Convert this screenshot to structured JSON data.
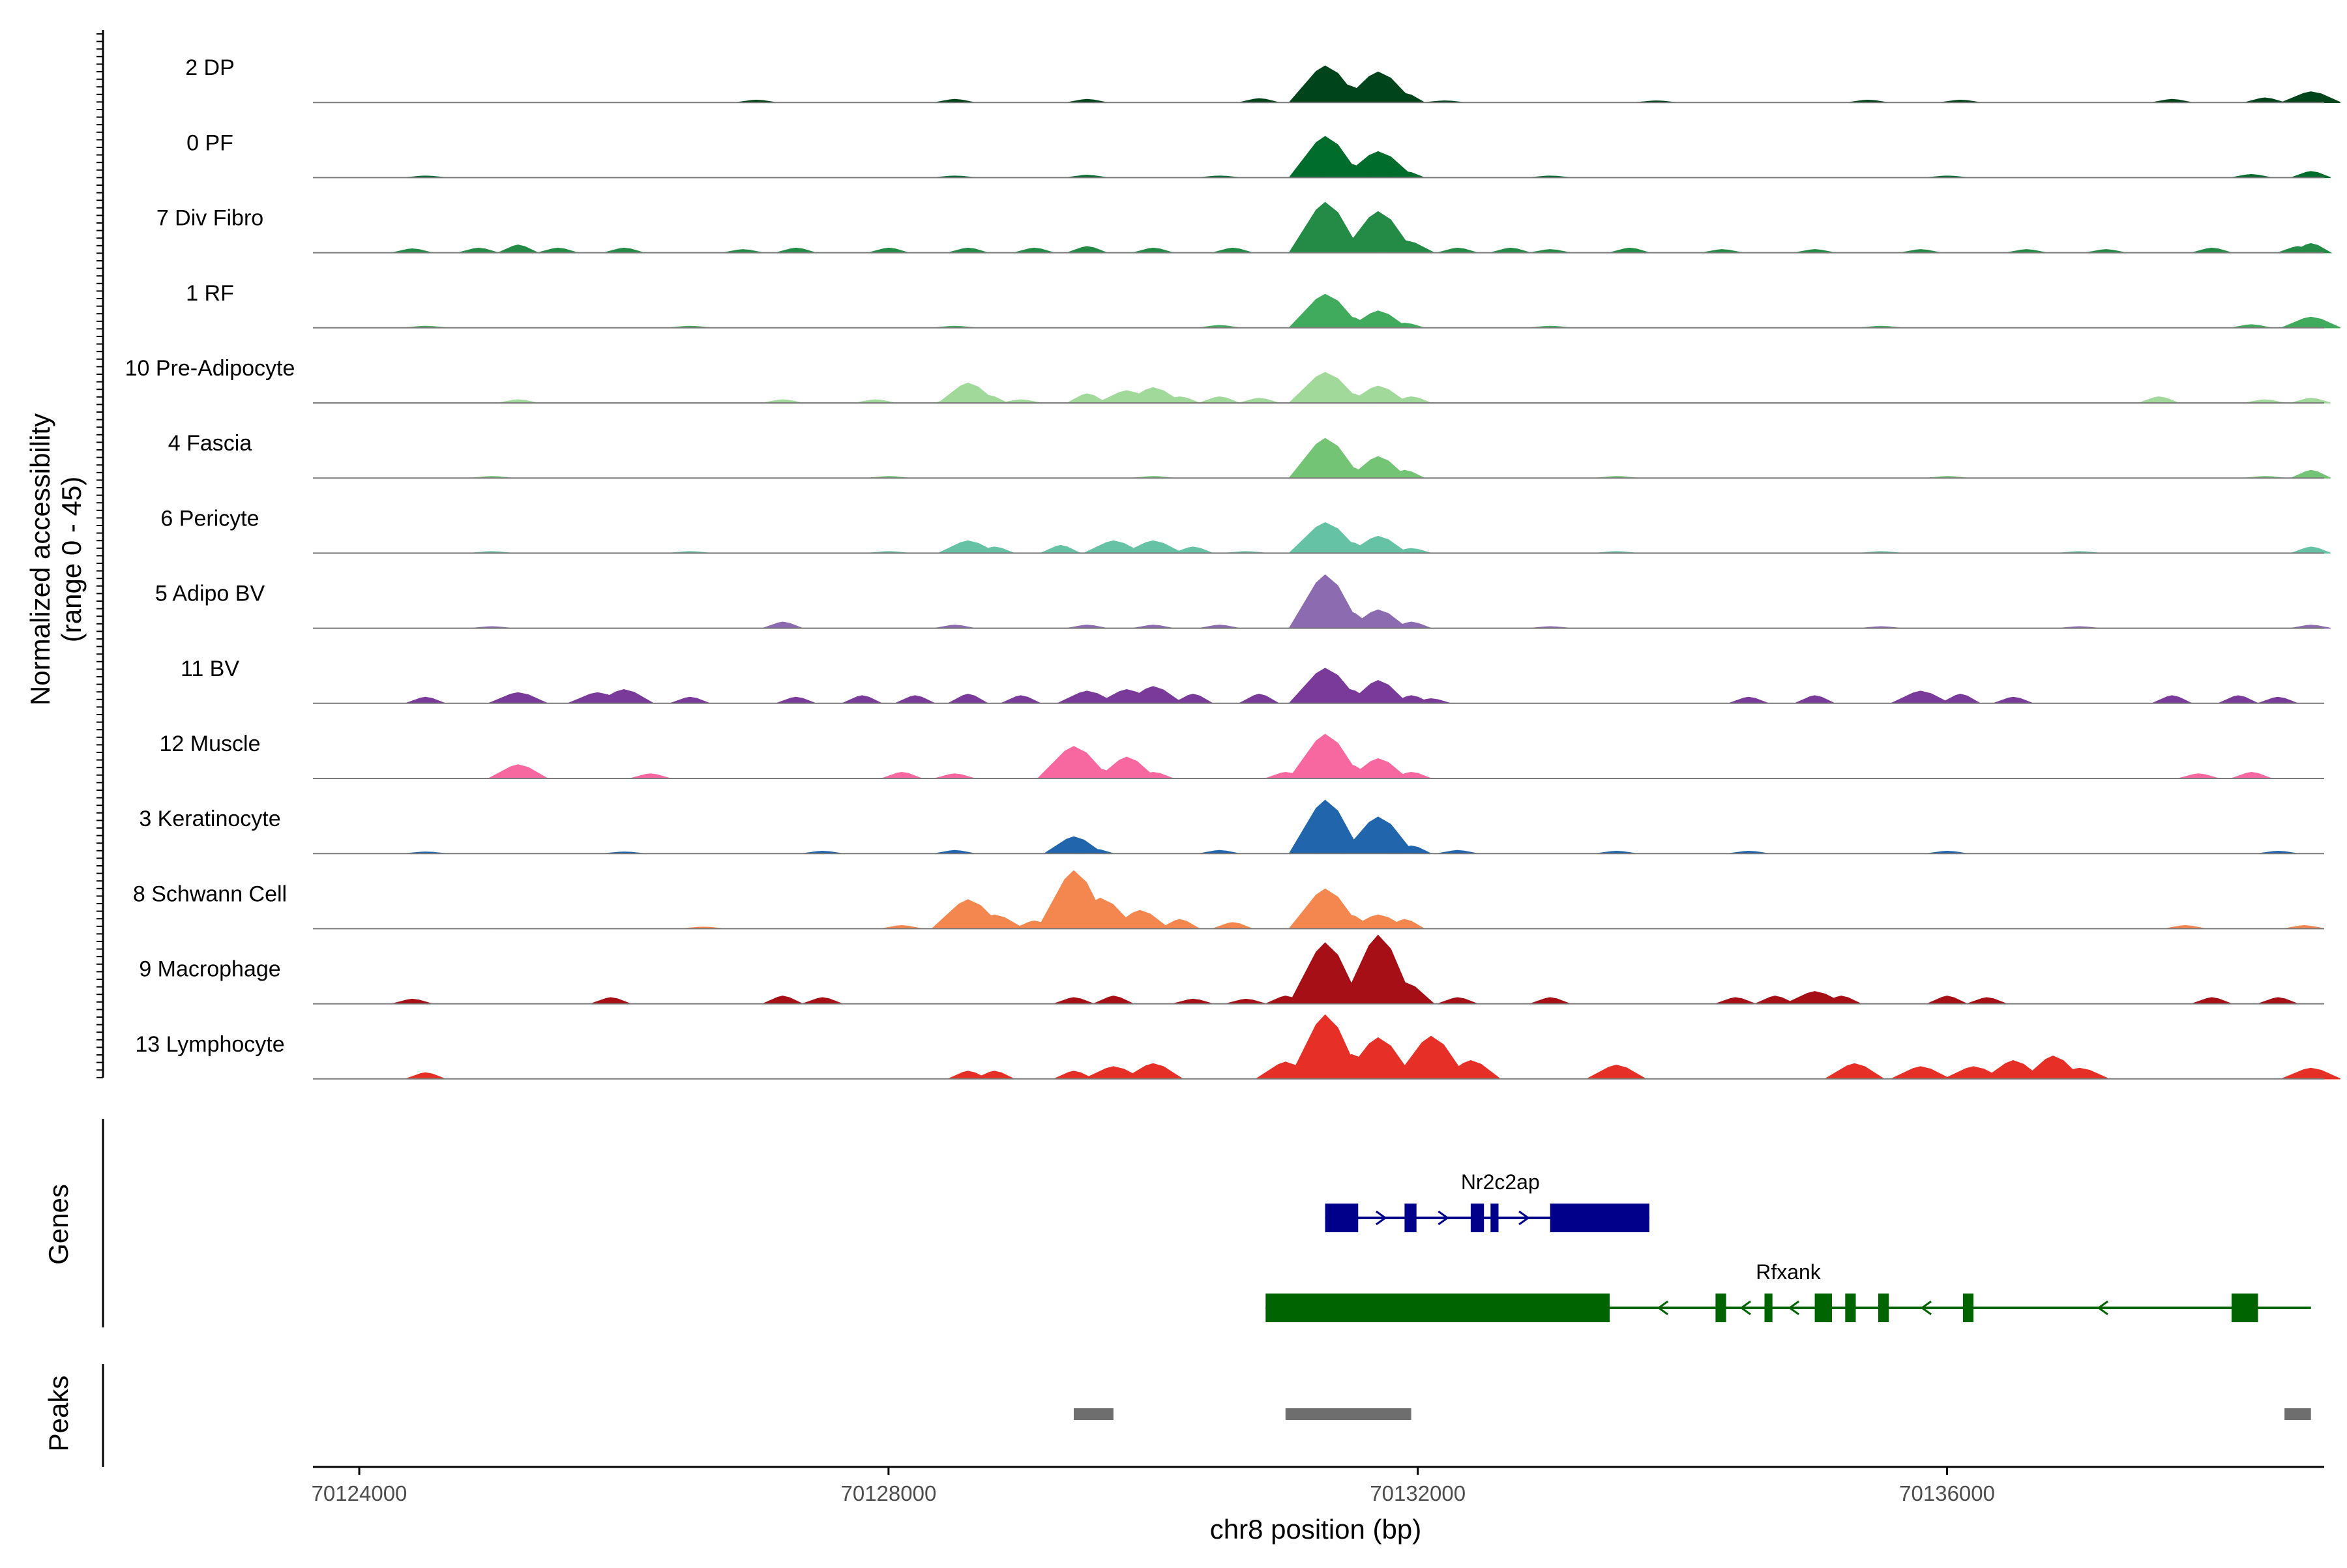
{
  "chart_data": {
    "type": "area",
    "xlabel": "chr8 position (bp)",
    "ylabel": "Normalized accessibility",
    "ylabel_range": "(range 0 - 45)",
    "ylim": [
      0,
      45
    ],
    "xlim": [
      70123650,
      70138850
    ],
    "x_ticks": [
      70124000,
      70128000,
      70132000,
      70136000
    ],
    "x_tick_labels": [
      "70124000",
      "70128000",
      "70132000",
      "70136000"
    ],
    "track_labels": {
      "genes": "Genes",
      "peaks": "Peaks"
    },
    "series": [
      {
        "name": "2 DP",
        "color": "#00441B",
        "values": [
          [
            70127000,
            1.5
          ],
          [
            70128500,
            2
          ],
          [
            70129500,
            2
          ],
          [
            70130800,
            2.5
          ],
          [
            70131300,
            24
          ],
          [
            70131450,
            12
          ],
          [
            70131700,
            20
          ],
          [
            70131900,
            6
          ],
          [
            70132200,
            1
          ],
          [
            70133800,
            1
          ],
          [
            70135400,
            1.5
          ],
          [
            70136100,
            1.5
          ],
          [
            70137700,
            2
          ],
          [
            70138400,
            3
          ],
          [
            70138750,
            7
          ]
        ]
      },
      {
        "name": "0 PF",
        "color": "#006D2C",
        "values": [
          [
            70124500,
            1
          ],
          [
            70128500,
            1
          ],
          [
            70129500,
            1.5
          ],
          [
            70130500,
            1
          ],
          [
            70131300,
            27
          ],
          [
            70131450,
            10
          ],
          [
            70131700,
            17
          ],
          [
            70131900,
            4
          ],
          [
            70133000,
            1
          ],
          [
            70136000,
            1
          ],
          [
            70138300,
            2
          ],
          [
            70138750,
            4
          ]
        ]
      },
      {
        "name": "7 Div Fibro",
        "color": "#238B45",
        "values": [
          [
            70124400,
            2.5
          ],
          [
            70124900,
            3
          ],
          [
            70125200,
            5
          ],
          [
            70125500,
            3
          ],
          [
            70126000,
            3
          ],
          [
            70126900,
            2
          ],
          [
            70127300,
            3
          ],
          [
            70128000,
            3
          ],
          [
            70128600,
            3
          ],
          [
            70129100,
            3
          ],
          [
            70129500,
            4
          ],
          [
            70130000,
            3
          ],
          [
            70130600,
            3
          ],
          [
            70131300,
            33
          ],
          [
            70131450,
            10
          ],
          [
            70131700,
            27
          ],
          [
            70131900,
            8
          ],
          [
            70132300,
            3
          ],
          [
            70132700,
            3
          ],
          [
            70133000,
            2
          ],
          [
            70133600,
            3
          ],
          [
            70134300,
            2
          ],
          [
            70135000,
            2
          ],
          [
            70135800,
            2
          ],
          [
            70136600,
            2
          ],
          [
            70137200,
            2
          ],
          [
            70138000,
            3
          ],
          [
            70138650,
            4
          ],
          [
            70138750,
            6
          ]
        ]
      },
      {
        "name": "1 RF",
        "color": "#41AB5D",
        "values": [
          [
            70124500,
            1
          ],
          [
            70126500,
            1
          ],
          [
            70128500,
            1
          ],
          [
            70130500,
            1.5
          ],
          [
            70131300,
            22
          ],
          [
            70131450,
            8
          ],
          [
            70131700,
            11
          ],
          [
            70131900,
            3
          ],
          [
            70133000,
            1
          ],
          [
            70135500,
            1
          ],
          [
            70138300,
            2
          ],
          [
            70138750,
            7
          ]
        ]
      },
      {
        "name": "10 Pre-Adipocyte",
        "color": "#A1D99B",
        "values": [
          [
            70125200,
            2
          ],
          [
            70127200,
            2
          ],
          [
            70127900,
            2
          ],
          [
            70128500,
            3
          ],
          [
            70128600,
            13
          ],
          [
            70128750,
            5
          ],
          [
            70129000,
            2
          ],
          [
            70129500,
            6
          ],
          [
            70129800,
            8
          ],
          [
            70130000,
            10
          ],
          [
            70130200,
            4
          ],
          [
            70130500,
            4
          ],
          [
            70130800,
            3
          ],
          [
            70131300,
            20
          ],
          [
            70131450,
            7
          ],
          [
            70131700,
            11
          ],
          [
            70131950,
            4
          ],
          [
            70137600,
            4
          ],
          [
            70138400,
            2
          ],
          [
            70138750,
            3
          ]
        ]
      },
      {
        "name": "4 Fascia",
        "color": "#74C476",
        "values": [
          [
            70125000,
            1
          ],
          [
            70128000,
            1
          ],
          [
            70130000,
            1
          ],
          [
            70131300,
            26
          ],
          [
            70131450,
            8
          ],
          [
            70131700,
            14
          ],
          [
            70131900,
            5
          ],
          [
            70133500,
            1
          ],
          [
            70136000,
            1
          ],
          [
            70138400,
            1
          ],
          [
            70138750,
            5
          ]
        ]
      },
      {
        "name": "6 Pericyte",
        "color": "#66C2A4",
        "values": [
          [
            70125000,
            1
          ],
          [
            70126500,
            1
          ],
          [
            70128000,
            1
          ],
          [
            70128600,
            8
          ],
          [
            70128800,
            4
          ],
          [
            70129300,
            5
          ],
          [
            70129700,
            8
          ],
          [
            70130000,
            8
          ],
          [
            70130300,
            4
          ],
          [
            70130700,
            1
          ],
          [
            70131300,
            20
          ],
          [
            70131450,
            8
          ],
          [
            70131700,
            11
          ],
          [
            70131950,
            3
          ],
          [
            70133500,
            1
          ],
          [
            70135500,
            1
          ],
          [
            70137000,
            1
          ],
          [
            70138750,
            4
          ]
        ]
      },
      {
        "name": "5 Adipo BV",
        "color": "#8C6BB1",
        "values": [
          [
            70125000,
            1
          ],
          [
            70127200,
            4
          ],
          [
            70128500,
            2
          ],
          [
            70129500,
            2
          ],
          [
            70130000,
            2
          ],
          [
            70130500,
            2
          ],
          [
            70131300,
            35
          ],
          [
            70131450,
            12
          ],
          [
            70131700,
            12
          ],
          [
            70131950,
            4
          ],
          [
            70133000,
            1
          ],
          [
            70135500,
            1
          ],
          [
            70137000,
            1
          ],
          [
            70138750,
            2
          ]
        ]
      },
      {
        "name": "11 BV",
        "color": "#7A3A9A",
        "values": [
          [
            70124500,
            4
          ],
          [
            70125200,
            7
          ],
          [
            70125800,
            7
          ],
          [
            70126000,
            9
          ],
          [
            70126500,
            4
          ],
          [
            70127300,
            4
          ],
          [
            70127800,
            5
          ],
          [
            70128200,
            5
          ],
          [
            70128600,
            6
          ],
          [
            70129000,
            5
          ],
          [
            70129500,
            8
          ],
          [
            70129800,
            9
          ],
          [
            70130000,
            11
          ],
          [
            70130300,
            6
          ],
          [
            70130800,
            6
          ],
          [
            70131300,
            23
          ],
          [
            70131450,
            10
          ],
          [
            70131700,
            15
          ],
          [
            70131950,
            5
          ],
          [
            70132100,
            3
          ],
          [
            70134500,
            4
          ],
          [
            70135000,
            5
          ],
          [
            70135800,
            8
          ],
          [
            70136100,
            6
          ],
          [
            70136500,
            4
          ],
          [
            70137700,
            5
          ],
          [
            70138200,
            5
          ],
          [
            70138500,
            4
          ]
        ]
      },
      {
        "name": "12 Muscle",
        "color": "#F768A1",
        "values": [
          [
            70125200,
            9
          ],
          [
            70126200,
            3
          ],
          [
            70128100,
            4
          ],
          [
            70128500,
            3
          ],
          [
            70129400,
            21
          ],
          [
            70129550,
            7
          ],
          [
            70129800,
            14
          ],
          [
            70130000,
            4
          ],
          [
            70131000,
            4
          ],
          [
            70131300,
            29
          ],
          [
            70131450,
            10
          ],
          [
            70131700,
            13
          ],
          [
            70131950,
            4
          ],
          [
            70137900,
            3
          ],
          [
            70138300,
            4
          ]
        ]
      },
      {
        "name": "3 Keratinocyte",
        "color": "#2166AC",
        "values": [
          [
            70124500,
            1
          ],
          [
            70126000,
            1
          ],
          [
            70127500,
            1.5
          ],
          [
            70128500,
            2
          ],
          [
            70129400,
            11
          ],
          [
            70129550,
            3
          ],
          [
            70130500,
            2
          ],
          [
            70131300,
            35
          ],
          [
            70131450,
            10
          ],
          [
            70131700,
            24
          ],
          [
            70131950,
            5
          ],
          [
            70132300,
            2
          ],
          [
            70133500,
            1.5
          ],
          [
            70134500,
            1.5
          ],
          [
            70136000,
            1.5
          ],
          [
            70138500,
            1.5
          ]
        ]
      },
      {
        "name": "8 Schwann Cell",
        "color": "#F4874F",
        "values": [
          [
            70126600,
            1
          ],
          [
            70128100,
            2
          ],
          [
            70128600,
            19
          ],
          [
            70128800,
            9
          ],
          [
            70129100,
            5
          ],
          [
            70129400,
            38
          ],
          [
            70129600,
            20
          ],
          [
            70129900,
            12
          ],
          [
            70130200,
            6
          ],
          [
            70130600,
            4
          ],
          [
            70131300,
            26
          ],
          [
            70131450,
            10
          ],
          [
            70131700,
            9
          ],
          [
            70131900,
            6
          ],
          [
            70137800,
            2
          ],
          [
            70138700,
            2
          ]
        ]
      },
      {
        "name": "9 Macrophage",
        "color": "#A50F15",
        "values": [
          [
            70124400,
            3
          ],
          [
            70125900,
            4
          ],
          [
            70127200,
            5
          ],
          [
            70127500,
            4
          ],
          [
            70129400,
            4
          ],
          [
            70129700,
            5
          ],
          [
            70130300,
            3
          ],
          [
            70130700,
            3
          ],
          [
            70131000,
            5
          ],
          [
            70131300,
            40
          ],
          [
            70131450,
            12
          ],
          [
            70131700,
            45
          ],
          [
            70131900,
            14
          ],
          [
            70132300,
            4
          ],
          [
            70133000,
            4
          ],
          [
            70134400,
            4
          ],
          [
            70134700,
            5
          ],
          [
            70135000,
            8
          ],
          [
            70135200,
            5
          ],
          [
            70136000,
            5
          ],
          [
            70136300,
            4
          ],
          [
            70138000,
            4
          ],
          [
            70138500,
            4
          ]
        ]
      },
      {
        "name": "13 Lymphocyte",
        "color": "#E63027",
        "values": [
          [
            70124500,
            4
          ],
          [
            70128600,
            5
          ],
          [
            70128800,
            5
          ],
          [
            70129400,
            5
          ],
          [
            70129700,
            8
          ],
          [
            70130000,
            10
          ],
          [
            70131000,
            11
          ],
          [
            70131300,
            42
          ],
          [
            70131500,
            16
          ],
          [
            70131700,
            27
          ],
          [
            70132100,
            28
          ],
          [
            70132400,
            12
          ],
          [
            70133500,
            9
          ],
          [
            70135300,
            10
          ],
          [
            70135800,
            8
          ],
          [
            70136200,
            8
          ],
          [
            70136500,
            12
          ],
          [
            70136800,
            15
          ],
          [
            70137000,
            7
          ],
          [
            70138750,
            7
          ]
        ]
      }
    ],
    "genes": [
      {
        "name": "Nr2c2ap",
        "color": "#00008B",
        "strand": "+",
        "start": 70131300,
        "end": 70133750,
        "exons": [
          [
            70131300,
            70131550
          ],
          [
            70131900,
            70131990
          ],
          [
            70132400,
            70132500
          ],
          [
            70132550,
            70132610
          ],
          [
            70133000,
            70133750
          ]
        ]
      },
      {
        "name": "Rfxank",
        "color": "#006400",
        "strand": "-",
        "start": 70130850,
        "end": 70138750,
        "exons": [
          [
            70130850,
            70133450
          ],
          [
            70134250,
            70134330
          ],
          [
            70134620,
            70134680
          ],
          [
            70135000,
            70135130
          ],
          [
            70135230,
            70135310
          ],
          [
            70135480,
            70135560
          ],
          [
            70136120,
            70136200
          ],
          [
            70138150,
            70138350
          ]
        ]
      }
    ],
    "peaks": [
      [
        70129400,
        70129700
      ],
      [
        70131000,
        70131950
      ],
      [
        70138550,
        70138750
      ]
    ],
    "grid": false,
    "legend": "none"
  }
}
